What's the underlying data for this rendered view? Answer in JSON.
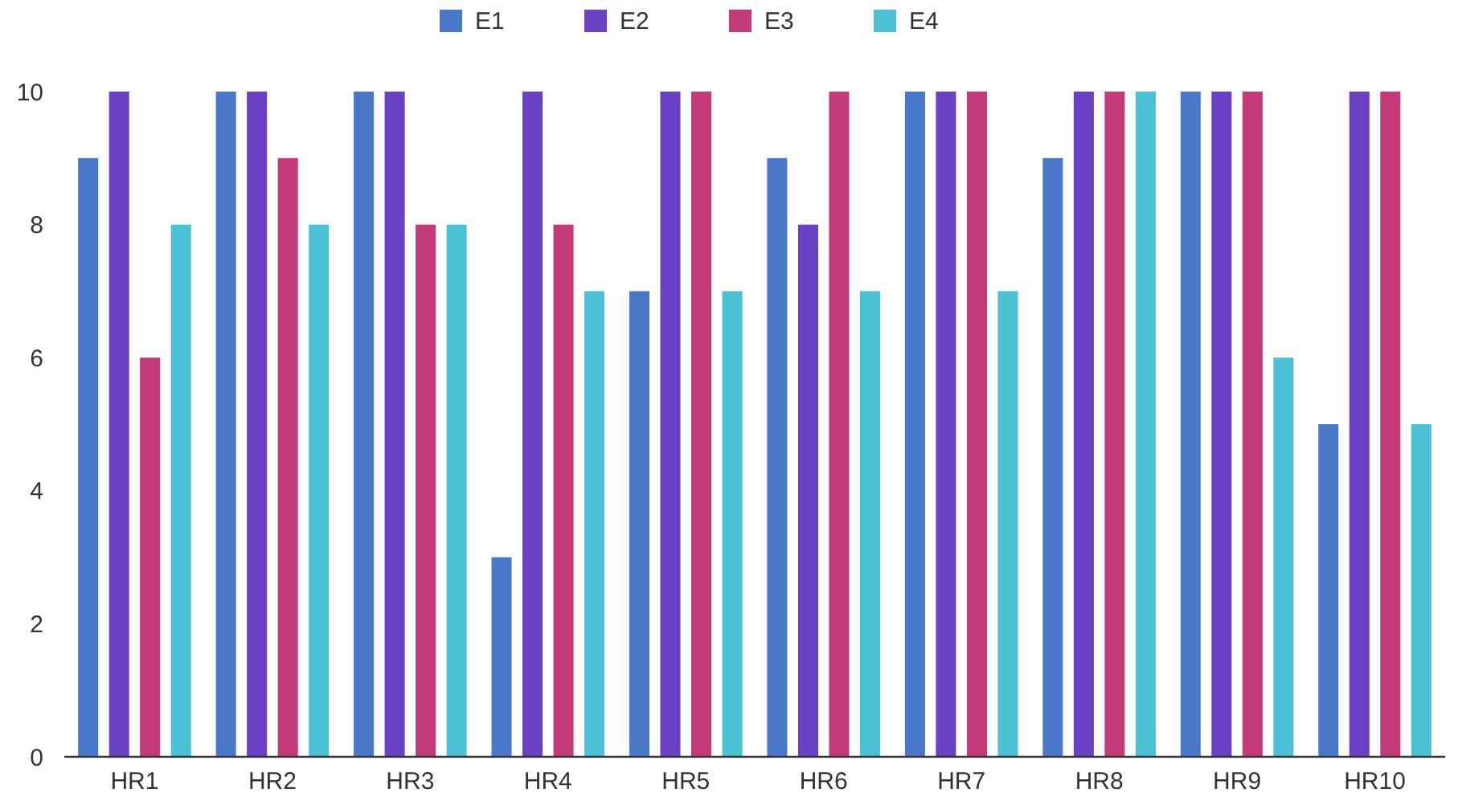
{
  "chart_data": {
    "type": "bar",
    "categories": [
      "HR1",
      "HR2",
      "HR3",
      "HR4",
      "HR5",
      "HR6",
      "HR7",
      "HR8",
      "HR9",
      "HR10"
    ],
    "series": [
      {
        "name": "E1",
        "color": "#4a78c8",
        "values": [
          9,
          10,
          10,
          3,
          7,
          9,
          10,
          9,
          10,
          5
        ]
      },
      {
        "name": "E2",
        "color": "#6a40c4",
        "values": [
          10,
          10,
          10,
          10,
          10,
          8,
          10,
          10,
          10,
          10
        ]
      },
      {
        "name": "E3",
        "color": "#c23a78",
        "values": [
          6,
          9,
          8,
          8,
          10,
          10,
          10,
          10,
          10,
          10
        ]
      },
      {
        "name": "E4",
        "color": "#4cc0d4",
        "values": [
          8,
          8,
          8,
          7,
          7,
          7,
          7,
          10,
          6,
          5
        ]
      }
    ],
    "ylim": [
      0,
      10
    ],
    "yticks": [
      0,
      2,
      4,
      6,
      8,
      10
    ],
    "legend": "top",
    "grid": false
  }
}
